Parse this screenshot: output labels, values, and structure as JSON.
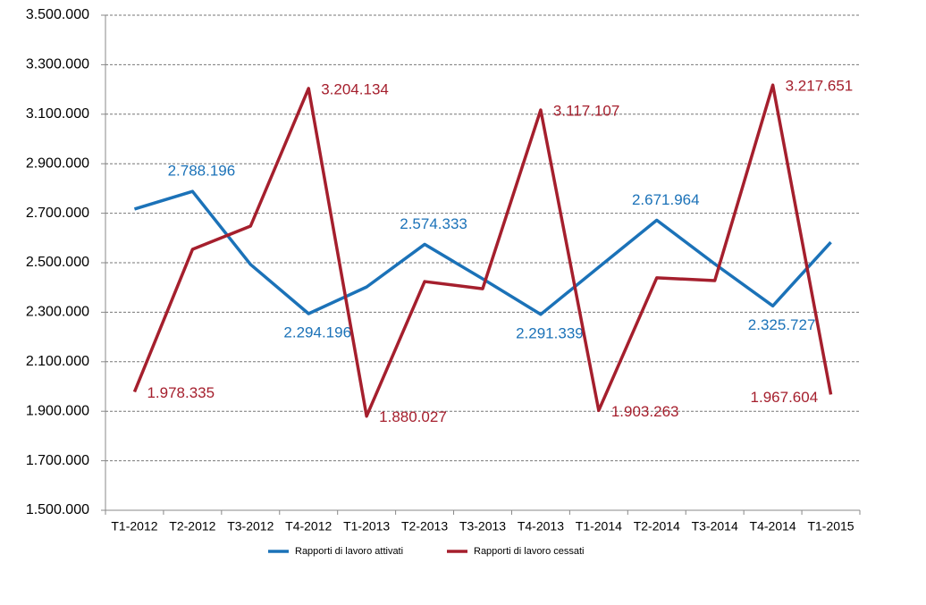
{
  "chart_data": {
    "type": "line",
    "categories": [
      "T1-2012",
      "T2-2012",
      "T3-2012",
      "T4-2012",
      "T1-2013",
      "T2-2013",
      "T3-2013",
      "T4-2013",
      "T1-2014",
      "T2-2014",
      "T3-2014",
      "T4-2014",
      "T1-2015"
    ],
    "series": [
      {
        "name": "Rapporti di lavoro attivati",
        "color": "#1b72b8",
        "values": [
          2717000,
          2788196,
          2493000,
          2294196,
          2402000,
          2574333,
          2435000,
          2291339,
          2482000,
          2671964,
          2495000,
          2325727,
          2583000
        ],
        "value_labels": [
          null,
          "2.788.196",
          null,
          "2.294.196",
          null,
          "2.574.333",
          null,
          "2.291.339",
          null,
          "2.671.964",
          null,
          "2.325.727",
          null
        ]
      },
      {
        "name": "Rapporti di lavoro cessati",
        "color": "#a51f2d",
        "values": [
          1978335,
          2554000,
          2648000,
          3204134,
          1880027,
          2424000,
          2395000,
          3117107,
          1903263,
          2439000,
          2428000,
          3217651,
          1967604
        ],
        "value_labels": [
          "1.978.335",
          null,
          null,
          "3.204.134",
          "1.880.027",
          null,
          null,
          "3.117.107",
          "1.903.263",
          null,
          null,
          "3.217.651",
          "1.967.604"
        ]
      }
    ],
    "ylim": [
      1500000,
      3500000
    ],
    "yticks": [
      {
        "value": 1500000,
        "label": "1.500.000"
      },
      {
        "value": 1700000,
        "label": "1.700.000"
      },
      {
        "value": 1900000,
        "label": "1.900.000"
      },
      {
        "value": 2100000,
        "label": "2.100.000"
      },
      {
        "value": 2300000,
        "label": "2.300.000"
      },
      {
        "value": 2500000,
        "label": "2.500.000"
      },
      {
        "value": 2700000,
        "label": "2.700.000"
      },
      {
        "value": 2900000,
        "label": "2.900.000"
      },
      {
        "value": 3100000,
        "label": "3.100.000"
      },
      {
        "value": 3300000,
        "label": "3.300.000"
      },
      {
        "value": 3500000,
        "label": "3.500.000"
      }
    ],
    "grid": true,
    "legend": "bottom"
  }
}
